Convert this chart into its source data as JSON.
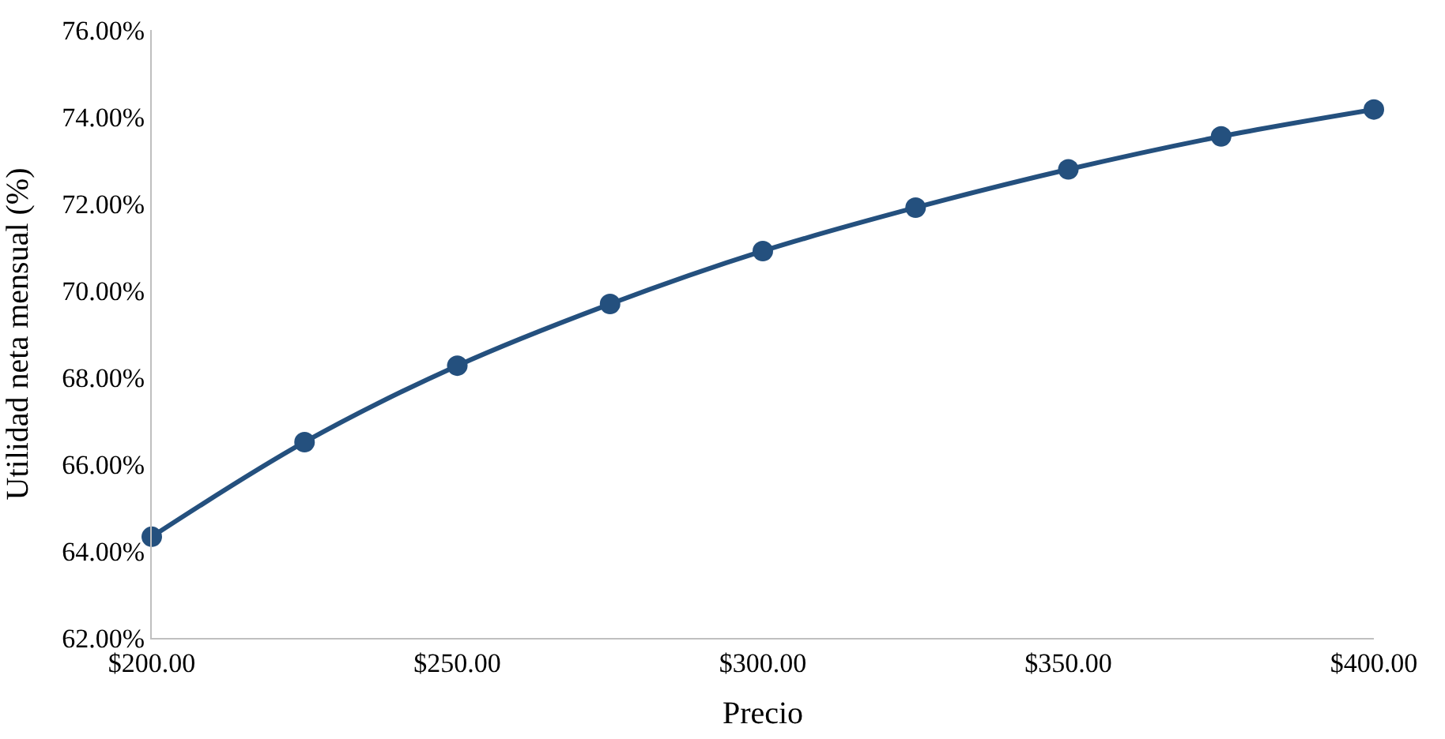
{
  "chart_data": {
    "type": "line",
    "xlabel": "Precio",
    "ylabel": "Utilidad neta mensual (%)",
    "x": [
      200,
      225,
      250,
      275,
      300,
      325,
      350,
      375,
      400
    ],
    "series": [
      {
        "color": "#24507e",
        "values": [
          64.33,
          66.51,
          68.27,
          69.69,
          70.91,
          71.91,
          72.79,
          73.55,
          74.17
        ]
      }
    ],
    "xlim": [
      200,
      400
    ],
    "xticks": [
      {
        "value": 200,
        "label": "$200.00"
      },
      {
        "value": 250,
        "label": "$250.00"
      },
      {
        "value": 300,
        "label": "$300.00"
      },
      {
        "value": 350,
        "label": "$350.00"
      },
      {
        "value": 400,
        "label": "$400.00"
      }
    ],
    "ylim": [
      62,
      76
    ],
    "yticks": [
      {
        "value": 62,
        "label": "62.00%"
      },
      {
        "value": 64,
        "label": "64.00%"
      },
      {
        "value": 66,
        "label": "66.00%"
      },
      {
        "value": 68,
        "label": "68.00%"
      },
      {
        "value": 70,
        "label": "70.00%"
      },
      {
        "value": 72,
        "label": "72.00%"
      },
      {
        "value": 74,
        "label": "74.00%"
      },
      {
        "value": 76,
        "label": "76.00%"
      }
    ],
    "marker": "circle",
    "line_style": "solid"
  }
}
